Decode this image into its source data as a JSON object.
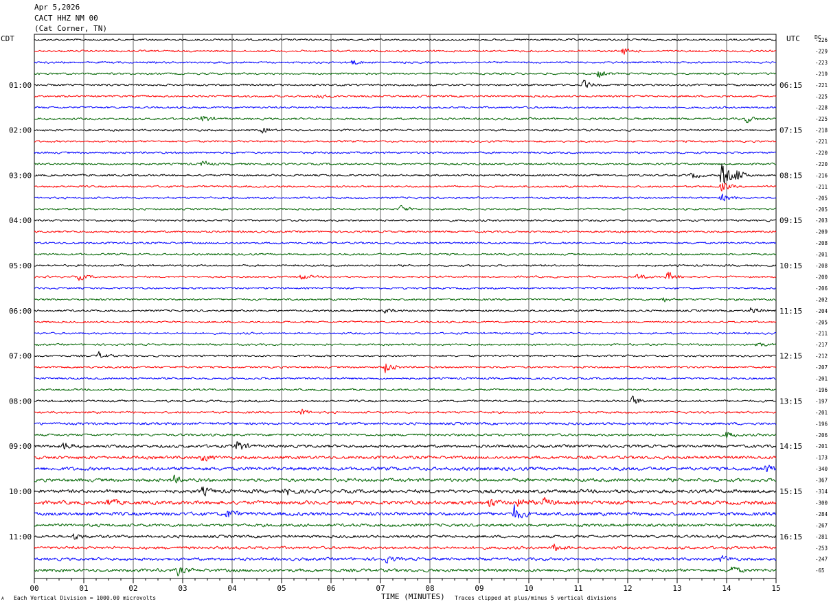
{
  "header": {
    "date": "Apr 5,2026",
    "station": "CACT HHZ NM 00",
    "location": "(Cat Corner, TN)"
  },
  "labels": {
    "left_tz": "CDT",
    "right_tz": "UTC",
    "dc": "DC"
  },
  "footer": {
    "scale_note": "Each Vertical Division = 1000.00 microvolts",
    "clip_note": "Traces clipped at plus/minus 5 vertical divisions",
    "mark": "A"
  },
  "chart_data": {
    "type": "line",
    "xlabel": "TIME (MINUTES)",
    "xlim": [
      0,
      15
    ],
    "x_ticks": [
      "00",
      "01",
      "02",
      "03",
      "04",
      "05",
      "06",
      "07",
      "08",
      "09",
      "10",
      "11",
      "12",
      "13",
      "14",
      "15"
    ],
    "trace_colors": [
      "#000000",
      "#ff0000",
      "#0000ff",
      "#006400"
    ],
    "row_count": 48,
    "left_hour_labels": [
      {
        "row": 4,
        "label": "01:00"
      },
      {
        "row": 8,
        "label": "02:00"
      },
      {
        "row": 12,
        "label": "03:00"
      },
      {
        "row": 16,
        "label": "04:00"
      },
      {
        "row": 20,
        "label": "05:00"
      },
      {
        "row": 24,
        "label": "06:00"
      },
      {
        "row": 28,
        "label": "07:00"
      },
      {
        "row": 32,
        "label": "08:00"
      },
      {
        "row": 36,
        "label": "09:00"
      },
      {
        "row": 40,
        "label": "10:00"
      },
      {
        "row": 44,
        "label": "11:00"
      }
    ],
    "right_hour_labels": [
      {
        "row": 4,
        "label": "06:15"
      },
      {
        "row": 8,
        "label": "07:15"
      },
      {
        "row": 12,
        "label": "08:15"
      },
      {
        "row": 16,
        "label": "09:15"
      },
      {
        "row": 20,
        "label": "10:15"
      },
      {
        "row": 24,
        "label": "11:15"
      },
      {
        "row": 28,
        "label": "12:15"
      },
      {
        "row": 32,
        "label": "13:15"
      },
      {
        "row": 36,
        "label": "14:15"
      },
      {
        "row": 40,
        "label": "15:15"
      },
      {
        "row": 44,
        "label": "16:15"
      }
    ],
    "dc_offsets": [
      "-226",
      "-229",
      "-223",
      "-219",
      "-221",
      "-225",
      "-228",
      "-225",
      "-218",
      "-221",
      "-220",
      "-220",
      "-216",
      "-211",
      "-205",
      "-205",
      "-203",
      "-209",
      "-208",
      "-201",
      "-208",
      "-200",
      "-206",
      "-202",
      "-204",
      "-205",
      "-211",
      "-217",
      "-212",
      "-207",
      "-201",
      "-196",
      "-197",
      "-201",
      "-196",
      "-206",
      "-201",
      "-173",
      "-340",
      "-367",
      "-314",
      "-300",
      "-284",
      "-267",
      "-281",
      "-253",
      "-247",
      "-65"
    ],
    "noise_level": [
      1,
      1,
      1,
      1,
      1,
      1,
      1,
      1.1,
      1.1,
      1,
      1,
      1,
      1,
      1,
      1,
      1,
      1,
      1,
      1,
      1,
      1,
      1,
      1,
      1,
      1,
      1,
      1,
      1,
      1,
      1,
      1,
      1,
      1.1,
      1.1,
      1.3,
      1.2,
      1.5,
      1.6,
      1.8,
      1.7,
      1.8,
      1.9,
      1.8,
      1.5,
      1.4,
      1.4,
      1.5,
      1.6
    ],
    "events": [
      {
        "row": 1,
        "minute": 11.9,
        "amp": 6
      },
      {
        "row": 2,
        "minute": 6.4,
        "amp": 7
      },
      {
        "row": 3,
        "minute": 11.4,
        "amp": 8
      },
      {
        "row": 4,
        "minute": 11.1,
        "amp": 8
      },
      {
        "row": 5,
        "minute": 5.7,
        "amp": 6
      },
      {
        "row": 7,
        "minute": 3.4,
        "amp": 7
      },
      {
        "row": 7,
        "minute": 14.4,
        "amp": 6
      },
      {
        "row": 8,
        "minute": 4.6,
        "amp": 5
      },
      {
        "row": 11,
        "minute": 3.4,
        "amp": 6
      },
      {
        "row": 12,
        "minute": 13.3,
        "amp": 6
      },
      {
        "row": 12,
        "minute": 13.9,
        "amp": 30
      },
      {
        "row": 12,
        "minute": 14.2,
        "amp": 14
      },
      {
        "row": 13,
        "minute": 13.9,
        "amp": 10
      },
      {
        "row": 14,
        "minute": 13.9,
        "amp": 8
      },
      {
        "row": 15,
        "minute": 7.4,
        "amp": 6
      },
      {
        "row": 21,
        "minute": 0.9,
        "amp": 6
      },
      {
        "row": 21,
        "minute": 5.4,
        "amp": 5
      },
      {
        "row": 21,
        "minute": 12.2,
        "amp": 6
      },
      {
        "row": 21,
        "minute": 12.8,
        "amp": 10
      },
      {
        "row": 23,
        "minute": 12.7,
        "amp": 5
      },
      {
        "row": 24,
        "minute": 7.1,
        "amp": 5
      },
      {
        "row": 24,
        "minute": 14.5,
        "amp": 7
      },
      {
        "row": 27,
        "minute": 14.6,
        "amp": 6
      },
      {
        "row": 28,
        "minute": 1.3,
        "amp": 7
      },
      {
        "row": 29,
        "minute": 7.1,
        "amp": 11
      },
      {
        "row": 32,
        "minute": 12.1,
        "amp": 9
      },
      {
        "row": 33,
        "minute": 5.4,
        "amp": 6
      },
      {
        "row": 35,
        "minute": 14.0,
        "amp": 7
      },
      {
        "row": 36,
        "minute": 0.6,
        "amp": 7
      },
      {
        "row": 36,
        "minute": 4.1,
        "amp": 12
      },
      {
        "row": 37,
        "minute": 3.4,
        "amp": 7
      },
      {
        "row": 38,
        "minute": 14.8,
        "amp": 7
      },
      {
        "row": 39,
        "minute": 2.8,
        "amp": 8
      },
      {
        "row": 40,
        "minute": 3.4,
        "amp": 8
      },
      {
        "row": 40,
        "minute": 5.1,
        "amp": 7
      },
      {
        "row": 41,
        "minute": 1.5,
        "amp": 8
      },
      {
        "row": 41,
        "minute": 9.2,
        "amp": 9
      },
      {
        "row": 41,
        "minute": 9.8,
        "amp": 9
      },
      {
        "row": 41,
        "minute": 10.3,
        "amp": 8
      },
      {
        "row": 42,
        "minute": 3.9,
        "amp": 9
      },
      {
        "row": 42,
        "minute": 9.7,
        "amp": 16
      },
      {
        "row": 44,
        "minute": 0.8,
        "amp": 6
      },
      {
        "row": 45,
        "minute": 10.5,
        "amp": 8
      },
      {
        "row": 46,
        "minute": 7.1,
        "amp": 6
      },
      {
        "row": 46,
        "minute": 13.9,
        "amp": 6
      },
      {
        "row": 47,
        "minute": 2.9,
        "amp": 8
      },
      {
        "row": 47,
        "minute": 14.1,
        "amp": 8
      }
    ]
  }
}
